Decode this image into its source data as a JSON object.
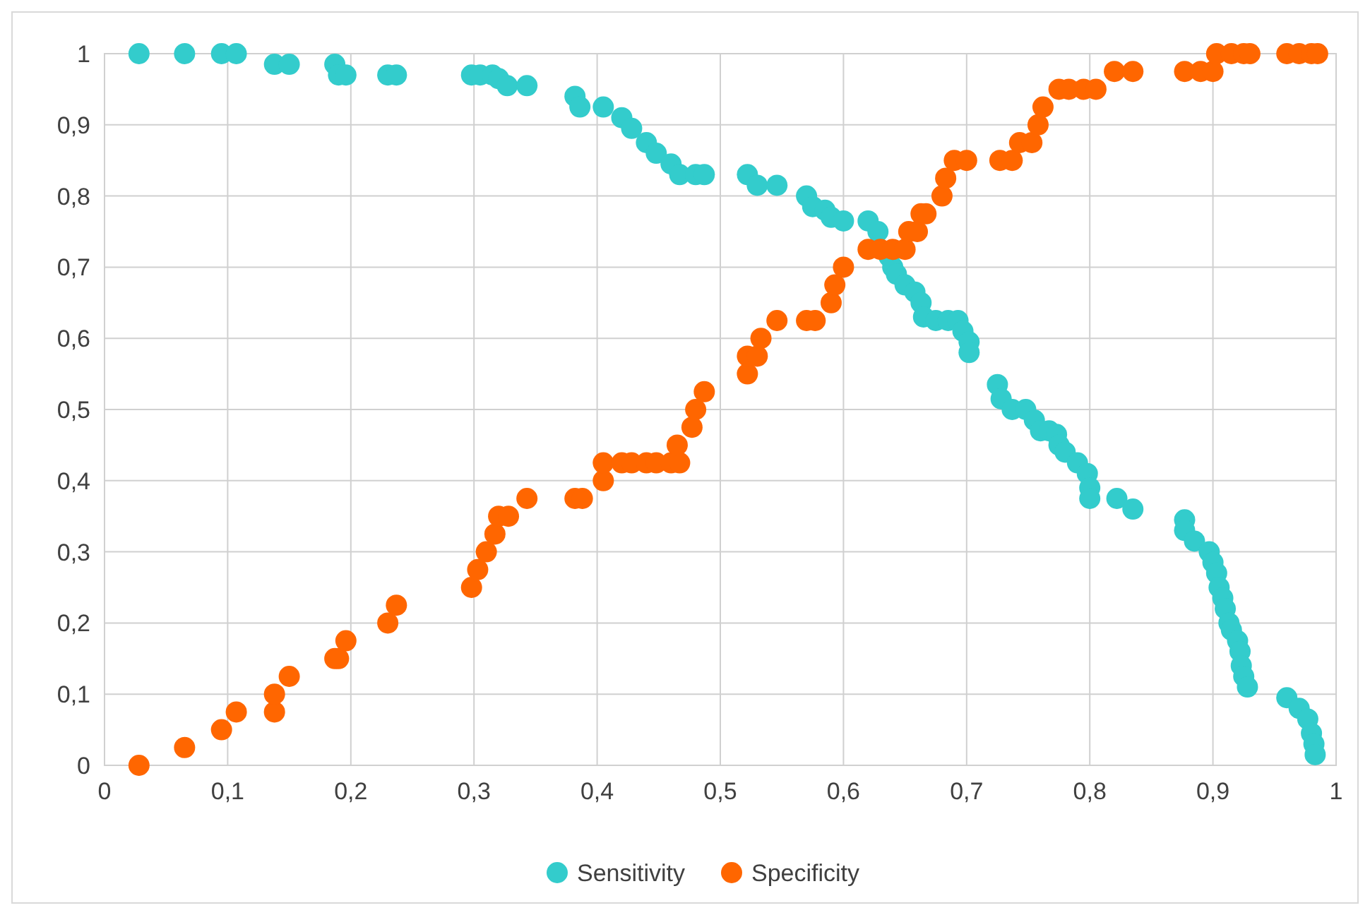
{
  "chart_data": {
    "type": "scatter",
    "xlim": [
      0,
      1
    ],
    "ylim": [
      0,
      1
    ],
    "xticks": [
      0,
      {
        "value": 0.1,
        "label": "0,1"
      },
      {
        "value": 0.2,
        "label": "0,2"
      },
      {
        "value": 0.3,
        "label": "0,3"
      },
      {
        "value": 0.4,
        "label": "0,4"
      },
      {
        "value": 0.5,
        "label": "0,5"
      },
      {
        "value": 0.6,
        "label": "0,6"
      },
      {
        "value": 0.7,
        "label": "0,7"
      },
      {
        "value": 0.8,
        "label": "0,8"
      },
      {
        "value": 0.9,
        "label": "0,9"
      },
      1
    ],
    "yticks": [
      0,
      {
        "value": 0.1,
        "label": "0,1"
      },
      {
        "value": 0.2,
        "label": "0,2"
      },
      {
        "value": 0.3,
        "label": "0,3"
      },
      {
        "value": 0.4,
        "label": "0,4"
      },
      {
        "value": 0.5,
        "label": "0,5"
      },
      {
        "value": 0.6,
        "label": "0,6"
      },
      {
        "value": 0.7,
        "label": "0,7"
      },
      {
        "value": 0.8,
        "label": "0,8"
      },
      {
        "value": 0.9,
        "label": "0,9"
      },
      1
    ],
    "grid": true,
    "legend": "bottom",
    "marker": "circle",
    "series": [
      {
        "name": "Sensitivity",
        "color": "#33cccc",
        "x": [
          0.028,
          0.065,
          0.095,
          0.107,
          0.138,
          0.15,
          0.187,
          0.19,
          0.196,
          0.23,
          0.237,
          0.298,
          0.305,
          0.315,
          0.32,
          0.327,
          0.343,
          0.382,
          0.386,
          0.405,
          0.42,
          0.428,
          0.44,
          0.448,
          0.46,
          0.467,
          0.48,
          0.487,
          0.522,
          0.53,
          0.546,
          0.57,
          0.575,
          0.585,
          0.59,
          0.6,
          0.62,
          0.628,
          0.637,
          0.64,
          0.643,
          0.65,
          0.658,
          0.663,
          0.665,
          0.675,
          0.685,
          0.693,
          0.697,
          0.702,
          0.702,
          0.725,
          0.728,
          0.737,
          0.748,
          0.755,
          0.76,
          0.767,
          0.773,
          0.775,
          0.78,
          0.79,
          0.798,
          0.8,
          0.8,
          0.822,
          0.835,
          0.877,
          0.877,
          0.885,
          0.897,
          0.9,
          0.903,
          0.905,
          0.908,
          0.91,
          0.913,
          0.915,
          0.92,
          0.922,
          0.923,
          0.925,
          0.928,
          0.96,
          0.97,
          0.977,
          0.98,
          0.982,
          0.983
        ],
        "values": [
          1,
          1,
          1,
          1,
          0.985,
          0.985,
          0.985,
          0.97,
          0.97,
          0.97,
          0.97,
          0.97,
          0.97,
          0.97,
          0.965,
          0.955,
          0.955,
          0.94,
          0.925,
          0.925,
          0.91,
          0.895,
          0.875,
          0.86,
          0.845,
          0.83,
          0.83,
          0.83,
          0.83,
          0.815,
          0.815,
          0.8,
          0.785,
          0.78,
          0.77,
          0.765,
          0.765,
          0.75,
          0.715,
          0.7,
          0.69,
          0.675,
          0.665,
          0.65,
          0.63,
          0.625,
          0.625,
          0.625,
          0.61,
          0.595,
          0.58,
          0.535,
          0.515,
          0.5,
          0.5,
          0.485,
          0.47,
          0.47,
          0.465,
          0.45,
          0.44,
          0.425,
          0.41,
          0.39,
          0.375,
          0.375,
          0.36,
          0.345,
          0.33,
          0.315,
          0.3,
          0.285,
          0.27,
          0.25,
          0.235,
          0.22,
          0.2,
          0.19,
          0.175,
          0.16,
          0.14,
          0.125,
          0.11,
          0.095,
          0.08,
          0.065,
          0.045,
          0.03,
          0.015
        ]
      },
      {
        "name": "Specificity",
        "color": "#ff6600",
        "x": [
          0.028,
          0.065,
          0.095,
          0.107,
          0.138,
          0.138,
          0.15,
          0.187,
          0.19,
          0.196,
          0.23,
          0.237,
          0.298,
          0.303,
          0.31,
          0.317,
          0.32,
          0.328,
          0.343,
          0.382,
          0.388,
          0.405,
          0.405,
          0.42,
          0.428,
          0.44,
          0.448,
          0.46,
          0.467,
          0.465,
          0.477,
          0.48,
          0.487,
          0.522,
          0.522,
          0.53,
          0.533,
          0.546,
          0.57,
          0.577,
          0.59,
          0.593,
          0.6,
          0.62,
          0.63,
          0.64,
          0.65,
          0.653,
          0.66,
          0.663,
          0.667,
          0.68,
          0.683,
          0.69,
          0.7,
          0.727,
          0.737,
          0.743,
          0.753,
          0.758,
          0.762,
          0.775,
          0.783,
          0.795,
          0.805,
          0.82,
          0.835,
          0.877,
          0.89,
          0.9,
          0.903,
          0.915,
          0.925,
          0.93,
          0.96,
          0.97,
          0.98,
          0.985
        ],
        "values": [
          0,
          0.025,
          0.05,
          0.075,
          0.075,
          0.1,
          0.125,
          0.15,
          0.15,
          0.175,
          0.2,
          0.225,
          0.25,
          0.275,
          0.3,
          0.325,
          0.35,
          0.35,
          0.375,
          0.375,
          0.375,
          0.4,
          0.425,
          0.425,
          0.425,
          0.425,
          0.425,
          0.425,
          0.425,
          0.45,
          0.475,
          0.5,
          0.525,
          0.55,
          0.575,
          0.575,
          0.6,
          0.625,
          0.625,
          0.625,
          0.65,
          0.675,
          0.7,
          0.725,
          0.725,
          0.725,
          0.725,
          0.75,
          0.75,
          0.775,
          0.775,
          0.8,
          0.825,
          0.85,
          0.85,
          0.85,
          0.85,
          0.875,
          0.875,
          0.9,
          0.925,
          0.95,
          0.95,
          0.95,
          0.95,
          0.975,
          0.975,
          0.975,
          0.975,
          0.975,
          1,
          1,
          1,
          1,
          1,
          1,
          1,
          1
        ]
      }
    ]
  }
}
